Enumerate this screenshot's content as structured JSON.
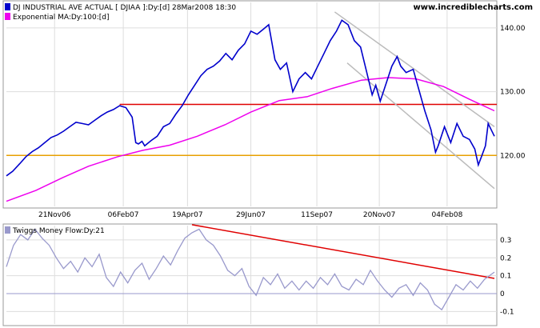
{
  "header": {
    "legend_main": "DJ INDUSTRIAL AVE ACTUAL [ DJIAA ]:Dy:[d]   28Mar2008 18:30",
    "legend_ema": "Exponential MA:Dy:100:[d]",
    "website": "www.incrediblecharts.com"
  },
  "colors": {
    "price": "#0000cc",
    "ema": "#ee00ee",
    "resistance": "#e00000",
    "support": "#e8a000",
    "channel": "#bbbbbb",
    "money_flow": "#9999cc",
    "mf_trendline": "#e00000",
    "grid": "#dddddd"
  },
  "chart_data": [
    {
      "type": "line",
      "title": "DJ INDUSTRIAL AVE ACTUAL [ DJIAA ]:Dy:[d]   28Mar2008 18:30",
      "x_tick_labels": [
        "21Nov06",
        "06Feb07",
        "19Apr07",
        "29Jun07",
        "11Sep07",
        "20Nov07",
        "04Feb08"
      ],
      "y_tick_labels": [
        "120.00",
        "130.00",
        "140.00"
      ],
      "ylim": [
        112,
        144
      ],
      "grid": true,
      "series": [
        {
          "name": "DJ INDUSTRIAL AVE ACTUAL",
          "x": [
            "2006-09-28",
            "2006-10-05",
            "2006-10-13",
            "2006-10-20",
            "2006-10-27",
            "2006-11-03",
            "2006-11-10",
            "2006-11-17",
            "2006-11-24",
            "2006-12-01",
            "2006-12-08",
            "2006-12-15",
            "2006-12-22",
            "2006-12-29",
            "2007-01-05",
            "2007-01-12",
            "2007-01-19",
            "2007-01-26",
            "2007-02-02",
            "2007-02-09",
            "2007-02-16",
            "2007-02-20",
            "2007-02-23",
            "2007-02-27",
            "2007-03-02",
            "2007-03-09",
            "2007-03-16",
            "2007-03-23",
            "2007-03-30",
            "2007-04-06",
            "2007-04-13",
            "2007-04-20",
            "2007-04-27",
            "2007-05-04",
            "2007-05-11",
            "2007-05-18",
            "2007-05-25",
            "2007-06-01",
            "2007-06-08",
            "2007-06-15",
            "2007-06-22",
            "2007-06-29",
            "2007-07-06",
            "2007-07-13",
            "2007-07-19",
            "2007-07-26",
            "2007-08-01",
            "2007-08-08",
            "2007-08-15",
            "2007-08-22",
            "2007-08-29",
            "2007-09-05",
            "2007-09-12",
            "2007-09-19",
            "2007-09-26",
            "2007-10-03",
            "2007-10-09",
            "2007-10-16",
            "2007-10-23",
            "2007-10-30",
            "2007-11-06",
            "2007-11-12",
            "2007-11-16",
            "2007-11-21",
            "2007-11-27",
            "2007-12-04",
            "2007-12-10",
            "2007-12-14",
            "2007-12-20",
            "2007-12-28",
            "2008-01-04",
            "2008-01-10",
            "2008-01-17",
            "2008-01-22",
            "2008-01-25",
            "2008-02-01",
            "2008-02-08",
            "2008-02-15",
            "2008-02-22",
            "2008-02-29",
            "2008-03-06",
            "2008-03-10",
            "2008-03-14",
            "2008-03-18",
            "2008-03-21",
            "2008-03-28"
          ],
          "values": [
            116.8,
            117.5,
            118.7,
            119.8,
            120.6,
            121.2,
            122.0,
            122.8,
            123.2,
            123.8,
            124.5,
            125.2,
            125.0,
            124.8,
            125.5,
            126.2,
            126.8,
            127.2,
            127.8,
            127.5,
            126.0,
            122.0,
            121.8,
            122.2,
            121.5,
            122.3,
            123.0,
            124.5,
            125.0,
            126.5,
            127.8,
            129.5,
            131.0,
            132.5,
            133.5,
            134.0,
            134.8,
            136.0,
            135.0,
            136.5,
            137.5,
            139.5,
            139.0,
            139.8,
            140.5,
            135.0,
            133.5,
            134.5,
            130.0,
            132.0,
            133.0,
            132.0,
            134.0,
            136.0,
            138.0,
            139.5,
            141.2,
            140.5,
            138.0,
            137.0,
            133.0,
            129.5,
            131.0,
            128.5,
            131.0,
            134.0,
            135.5,
            134.0,
            133.0,
            133.5,
            130.0,
            127.0,
            124.0,
            120.5,
            121.5,
            124.5,
            122.0,
            125.0,
            123.0,
            122.5,
            121.0,
            118.5,
            120.0,
            121.5,
            125.0,
            123.0
          ]
        },
        {
          "name": "Exponential MA:Dy:100:[d]",
          "x": [
            "2006-09-28",
            "2006-10-31",
            "2006-11-30",
            "2006-12-29",
            "2007-01-31",
            "2007-02-28",
            "2007-03-30",
            "2007-04-30",
            "2007-05-31",
            "2007-06-29",
            "2007-07-31",
            "2007-08-31",
            "2007-09-28",
            "2007-10-31",
            "2007-11-30",
            "2007-12-31",
            "2008-01-31",
            "2008-02-29",
            "2008-03-28"
          ],
          "values": [
            112.8,
            114.5,
            116.5,
            118.3,
            119.8,
            120.8,
            121.6,
            123.0,
            124.8,
            126.8,
            128.6,
            129.2,
            130.5,
            131.8,
            132.2,
            132.0,
            130.8,
            128.8,
            127.0
          ]
        }
      ],
      "annotations": [
        {
          "label": "resistance",
          "kind": "horizontal",
          "y": 128.0,
          "x_start": "2007-02-02",
          "x_end": "2008-03-28"
        },
        {
          "label": "support",
          "kind": "horizontal",
          "y": 120.0,
          "x_start": "2006-09-28",
          "x_end": "2008-03-28"
        },
        {
          "label": "channel_upper",
          "kind": "trendline",
          "from": {
            "x": "2007-10-01",
            "y": 142.5
          },
          "to": {
            "x": "2008-03-28",
            "y": 124.5
          }
        },
        {
          "label": "channel_lower",
          "kind": "trendline",
          "from": {
            "x": "2007-10-15",
            "y": 134.5
          },
          "to": {
            "x": "2008-03-28",
            "y": 114.8
          }
        }
      ]
    },
    {
      "type": "line",
      "title": "Twiggs Money Flow:Dy:21",
      "y_tick_labels": [
        "-0.1",
        "0",
        "0.1",
        "0.2",
        "0.3"
      ],
      "ylim": [
        -0.17,
        0.38
      ],
      "zero_line": true,
      "series": [
        {
          "name": "Twiggs Money Flow:Dy:21",
          "x": [
            "2006-09-28",
            "2006-10-06",
            "2006-10-14",
            "2006-10-22",
            "2006-10-30",
            "2006-11-07",
            "2006-11-15",
            "2006-11-23",
            "2006-12-01",
            "2006-12-09",
            "2006-12-17",
            "2006-12-25",
            "2007-01-02",
            "2007-01-10",
            "2007-01-18",
            "2007-01-26",
            "2007-02-03",
            "2007-02-11",
            "2007-02-19",
            "2007-02-27",
            "2007-03-07",
            "2007-03-15",
            "2007-03-23",
            "2007-03-31",
            "2007-04-08",
            "2007-04-16",
            "2007-04-24",
            "2007-05-02",
            "2007-05-10",
            "2007-05-18",
            "2007-05-26",
            "2007-06-03",
            "2007-06-11",
            "2007-06-19",
            "2007-06-27",
            "2007-07-05",
            "2007-07-13",
            "2007-07-21",
            "2007-07-29",
            "2007-08-06",
            "2007-08-14",
            "2007-08-22",
            "2007-08-30",
            "2007-09-07",
            "2007-09-15",
            "2007-09-23",
            "2007-10-01",
            "2007-10-09",
            "2007-10-17",
            "2007-10-25",
            "2007-11-02",
            "2007-11-10",
            "2007-11-18",
            "2007-11-26",
            "2007-12-04",
            "2007-12-12",
            "2007-12-20",
            "2007-12-28",
            "2008-01-05",
            "2008-01-13",
            "2008-01-21",
            "2008-01-29",
            "2008-02-06",
            "2008-02-14",
            "2008-02-22",
            "2008-03-01",
            "2008-03-09",
            "2008-03-17",
            "2008-03-28"
          ],
          "values": [
            0.15,
            0.27,
            0.33,
            0.3,
            0.36,
            0.31,
            0.27,
            0.2,
            0.14,
            0.18,
            0.12,
            0.2,
            0.15,
            0.22,
            0.09,
            0.04,
            0.12,
            0.06,
            0.13,
            0.17,
            0.08,
            0.14,
            0.21,
            0.16,
            0.24,
            0.31,
            0.34,
            0.36,
            0.3,
            0.27,
            0.21,
            0.13,
            0.1,
            0.14,
            0.04,
            -0.01,
            0.09,
            0.05,
            0.11,
            0.03,
            0.07,
            0.02,
            0.07,
            0.03,
            0.09,
            0.05,
            0.11,
            0.04,
            0.02,
            0.08,
            0.05,
            0.13,
            0.07,
            0.02,
            -0.02,
            0.03,
            0.05,
            -0.01,
            0.06,
            0.02,
            -0.06,
            -0.09,
            -0.02,
            0.05,
            0.02,
            0.07,
            0.03,
            0.08,
            0.12
          ]
        }
      ],
      "annotations": [
        {
          "label": "money_flow_trendline",
          "kind": "trendline",
          "from": {
            "x": "2007-04-24",
            "y": 0.385
          },
          "to": {
            "x": "2008-03-28",
            "y": 0.085
          }
        }
      ]
    }
  ]
}
